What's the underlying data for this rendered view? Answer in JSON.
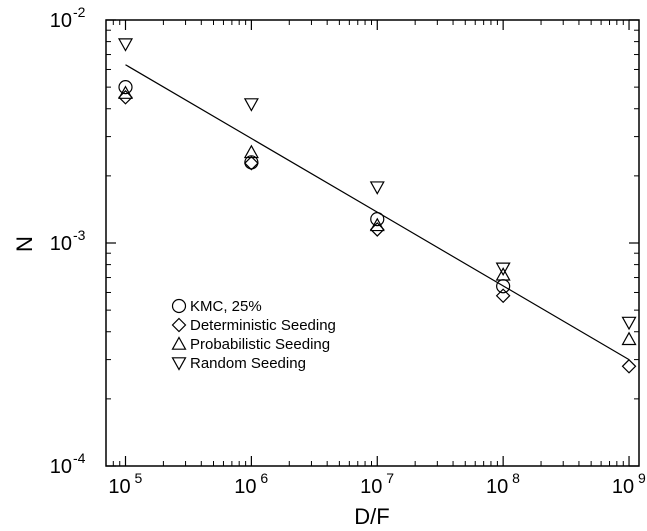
{
  "chart_data": {
    "type": "scatter",
    "title": "",
    "xlabel": "D/F",
    "ylabel": "N",
    "xscale": "log",
    "yscale": "log",
    "xlim": [
      70000,
      1200000000
    ],
    "ylim": [
      0.0001,
      0.01
    ],
    "x_ticks": [
      {
        "value": 100000,
        "base": "10",
        "exp": "5"
      },
      {
        "value": 1000000,
        "base": "10",
        "exp": "6"
      },
      {
        "value": 10000000,
        "base": "10",
        "exp": "7"
      },
      {
        "value": 100000000,
        "base": "10",
        "exp": "8"
      },
      {
        "value": 1000000000,
        "base": "10",
        "exp": "9"
      }
    ],
    "y_ticks": [
      {
        "value": 0.0001,
        "base": "10",
        "exp": "-4"
      },
      {
        "value": 0.001,
        "base": "10",
        "exp": "-3"
      },
      {
        "value": 0.01,
        "base": "10",
        "exp": "-2"
      }
    ],
    "grid": false,
    "legend_position": "lower-left",
    "series": [
      {
        "name": "KMC, 25%",
        "marker": "circle",
        "points": [
          [
            100000,
            0.005
          ],
          [
            1000000,
            0.0023
          ],
          [
            10000000,
            0.00128
          ],
          [
            100000000,
            0.00064
          ]
        ]
      },
      {
        "name": "Deterministic Seeding",
        "marker": "diamond",
        "points": [
          [
            100000,
            0.0045
          ],
          [
            1000000,
            0.00228
          ],
          [
            10000000,
            0.00115
          ],
          [
            100000000,
            0.00058
          ],
          [
            1000000000,
            0.00028
          ]
        ]
      },
      {
        "name": "Probabilistic Seeding",
        "marker": "triangle-up",
        "points": [
          [
            100000,
            0.0047
          ],
          [
            1000000,
            0.00255
          ],
          [
            10000000,
            0.0012
          ],
          [
            100000000,
            0.00072
          ],
          [
            1000000000,
            0.00037
          ]
        ]
      },
      {
        "name": "Random Seeding",
        "marker": "triangle-down",
        "points": [
          [
            100000,
            0.0078
          ],
          [
            1000000,
            0.0042
          ],
          [
            10000000,
            0.00178
          ],
          [
            100000000,
            0.00077
          ],
          [
            1000000000,
            0.00044
          ]
        ]
      }
    ],
    "fit_line": {
      "points": [
        [
          100000,
          0.0063
        ],
        [
          1000000000,
          0.0003
        ]
      ]
    }
  }
}
